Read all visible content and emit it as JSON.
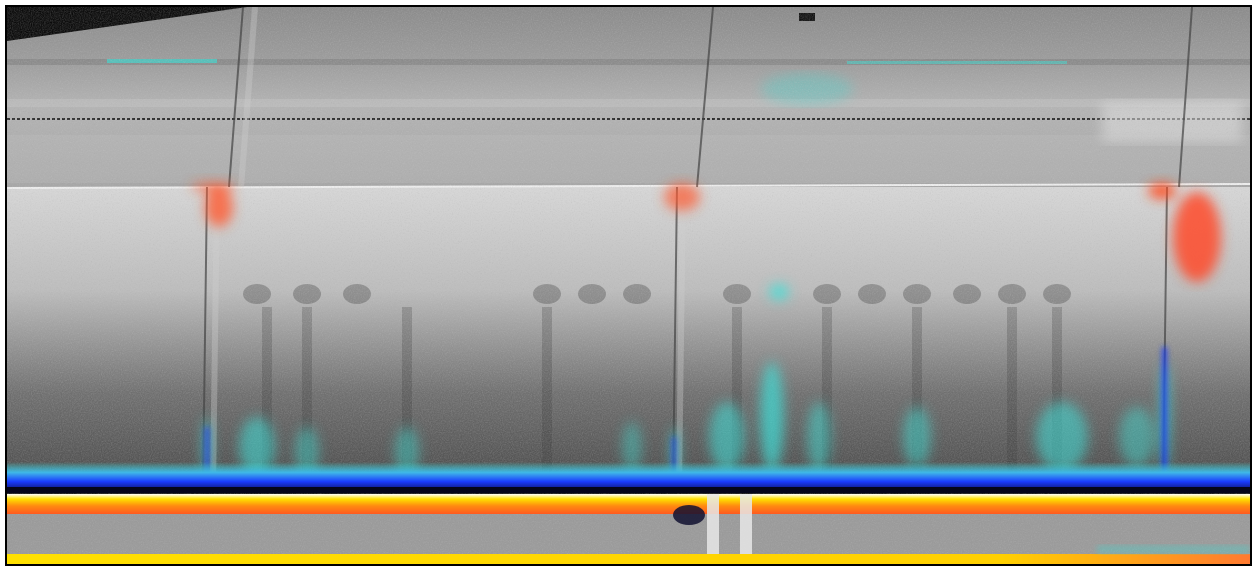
{
  "image": {
    "kind": "point-cloud-intensity-scan",
    "palette": {
      "background_black": "#000000",
      "upper_gray": "#9a9a9a",
      "wall_light_gray": "#cfcfcf",
      "wall_dark_gray": "#5a5a5a",
      "cyan": "#3fe0d8",
      "blue": "#1a3cff",
      "deep_blue": "#0a0a66",
      "yellow": "#ffe000",
      "orange": "#ff6a1a",
      "red_orange": "#ff4a2a"
    }
  }
}
